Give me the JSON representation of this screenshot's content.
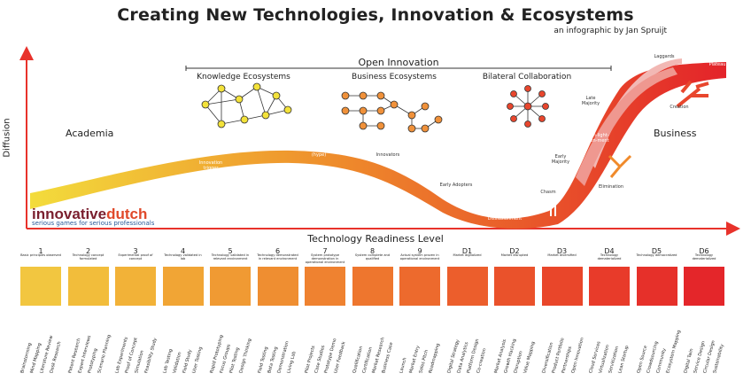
{
  "title": "Creating New Technologies, Innovation & Ecosystems",
  "subtitle": "an infographic by Jan Spruijt",
  "y_axis_label": "Diffusion",
  "x_axis_label": "Technology Readiness Level",
  "open_innovation": "Open Innovation",
  "ecosystems": [
    "Knowledge Ecosystems",
    "Business Ecosystems",
    "Bilateral Collaboration"
  ],
  "regions": {
    "academia": "Academia",
    "business": "Business"
  },
  "curve_labels": {
    "innovation_trigger": "Innovation trigger",
    "inflated": "Inflated expectations (hype)",
    "innovators": "Innovators",
    "early_adopters": "Early Adopters",
    "valley": "\"Valley of Death\" Disillusionment",
    "chasm": "Chasm",
    "early_majority": "Early Majority",
    "late_majority": "Late Majority",
    "laggards": "Laggards",
    "plateau": "Plateau",
    "enlightenment": "En-light-en-ment",
    "elimination": "Elimination",
    "creation": "Creation"
  },
  "logo": {
    "part1": "innovative",
    "part2": "dutch",
    "tagline": "serious games for serious professionals"
  },
  "colors": {
    "arrow": "#e8322b",
    "start": "#f3dc3c",
    "mid": "#ee7d2b",
    "end": "#e3232a"
  },
  "trl": [
    {
      "num": "1",
      "desc": "Basic principles observed",
      "color": "#f2c640"
    },
    {
      "num": "2",
      "desc": "Technology concept formulated",
      "color": "#f2bd3b"
    },
    {
      "num": "3",
      "desc": "Experimental proof of concept",
      "color": "#f2b238"
    },
    {
      "num": "4",
      "desc": "Technology validated in lab",
      "color": "#f1a535"
    },
    {
      "num": "5",
      "desc": "Technology validated in relevant environment",
      "color": "#f09a33"
    },
    {
      "num": "6",
      "desc": "Technology demonstrated in relevant environment",
      "color": "#ef8e31"
    },
    {
      "num": "7",
      "desc": "System prototype demonstration in operational environment",
      "color": "#ef8230"
    },
    {
      "num": "8",
      "desc": "System complete and qualified",
      "color": "#ee762e"
    },
    {
      "num": "9",
      "desc": "Actual system proven in operational environment",
      "color": "#ed6a2d"
    },
    {
      "num": "D1",
      "desc": "Market digitalized",
      "color": "#ec5e2c"
    },
    {
      "num": "D2",
      "desc": "Market disrupted",
      "color": "#ea522b"
    },
    {
      "num": "D3",
      "desc": "Market diversified",
      "color": "#e9462a"
    },
    {
      "num": "D4",
      "desc": "Technology dematerialized",
      "color": "#e83b2a"
    },
    {
      "num": "D5",
      "desc": "Technology democratized",
      "color": "#e6302a"
    },
    {
      "num": "D6",
      "desc": "Technology dematerialized",
      "color": "#e4262a"
    }
  ],
  "tools": [
    [
      "Brainstorming",
      "Mind Mapping",
      "Literature Review",
      "Desk Research"
    ],
    [
      "Patent Research",
      "Expert Interviews",
      "Prototyping",
      "Scenario Planning"
    ],
    [
      "Lab Experiments",
      "Proof of Concept",
      "Simulation",
      "Feasibility Study"
    ],
    [
      "Lab Testing",
      "Validation",
      "Field Study",
      "User Testing"
    ],
    [
      "Rapid Prototyping",
      "Focus Groups",
      "Pilot Testing",
      "Design Thinking"
    ],
    [
      "Field Testing",
      "Beta Testing",
      "Demonstration",
      "Living Lab"
    ],
    [
      "Pilot Projects",
      "Case Studies",
      "Prototype Demo",
      "User Feedback"
    ],
    [
      "Qualification",
      "Certification",
      "Market Research",
      "Business Case"
    ],
    [
      "Launch",
      "Market Entry",
      "Sales Pitch",
      "Roadmapping"
    ],
    [
      "Digital Strategy",
      "Data Analytics",
      "Platform Design",
      "Co-creation"
    ],
    [
      "Market Analysis",
      "Growth Hacking",
      "Disruption",
      "Value Mapping"
    ],
    [
      "Diversification",
      "Product Portfolio",
      "Partnerships",
      "Open Innovation"
    ],
    [
      "Cloud Services",
      "Virtualization",
      "Servitization",
      "Lean Startup"
    ],
    [
      "Open Source",
      "Crowdsourcing",
      "Community",
      "Ecosystem Mapping"
    ],
    [
      "Digital Twin",
      "Service Design",
      "Circular Design",
      "Sustainability"
    ]
  ]
}
